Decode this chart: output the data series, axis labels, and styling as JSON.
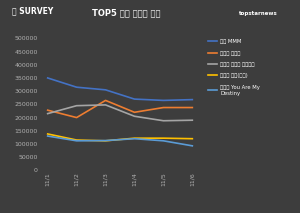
{
  "title": "TOP5 일별 득표수 추이",
  "bg_color": "#3d3d3d",
  "plot_bg_color": "#3d3d3d",
  "x_labels": [
    "11/1",
    "11/2",
    "11/3",
    "11/4",
    "11/5",
    "11/6"
  ],
  "series": [
    {
      "name": "영탁 MMM",
      "color": "#4472c4",
      "values": [
        350000,
        315000,
        305000,
        270000,
        265000,
        268000
      ]
    },
    {
      "name": "장민호 화초리",
      "color": "#ed7d31",
      "values": [
        228000,
        200000,
        265000,
        220000,
        238000,
        238000
      ]
    },
    {
      "name": "이승윤 폐허가 된다해도",
      "color": "#a5a5a5",
      "values": [
        215000,
        245000,
        248000,
        205000,
        188000,
        190000
      ]
    },
    {
      "name": "송가인 연기(煙氣)",
      "color": "#ffc000",
      "values": [
        138000,
        115000,
        112000,
        122000,
        122000,
        120000
      ]
    },
    {
      "name": "김기태 You Are My Destiny",
      "color": "#5b9bd5",
      "values": [
        130000,
        112000,
        113000,
        120000,
        112000,
        93000
      ]
    }
  ],
  "ylim": [
    0,
    500000
  ],
  "yticks": [
    0,
    50000,
    100000,
    150000,
    200000,
    250000,
    300000,
    350000,
    400000,
    450000,
    500000
  ],
  "legend_names": [
    "영탁 MMM",
    "장민호 화초리",
    "이승윤 폐허가 된다해도",
    "송가인 연기(煙氣)",
    "김기태 You Are My\nDestiny"
  ]
}
